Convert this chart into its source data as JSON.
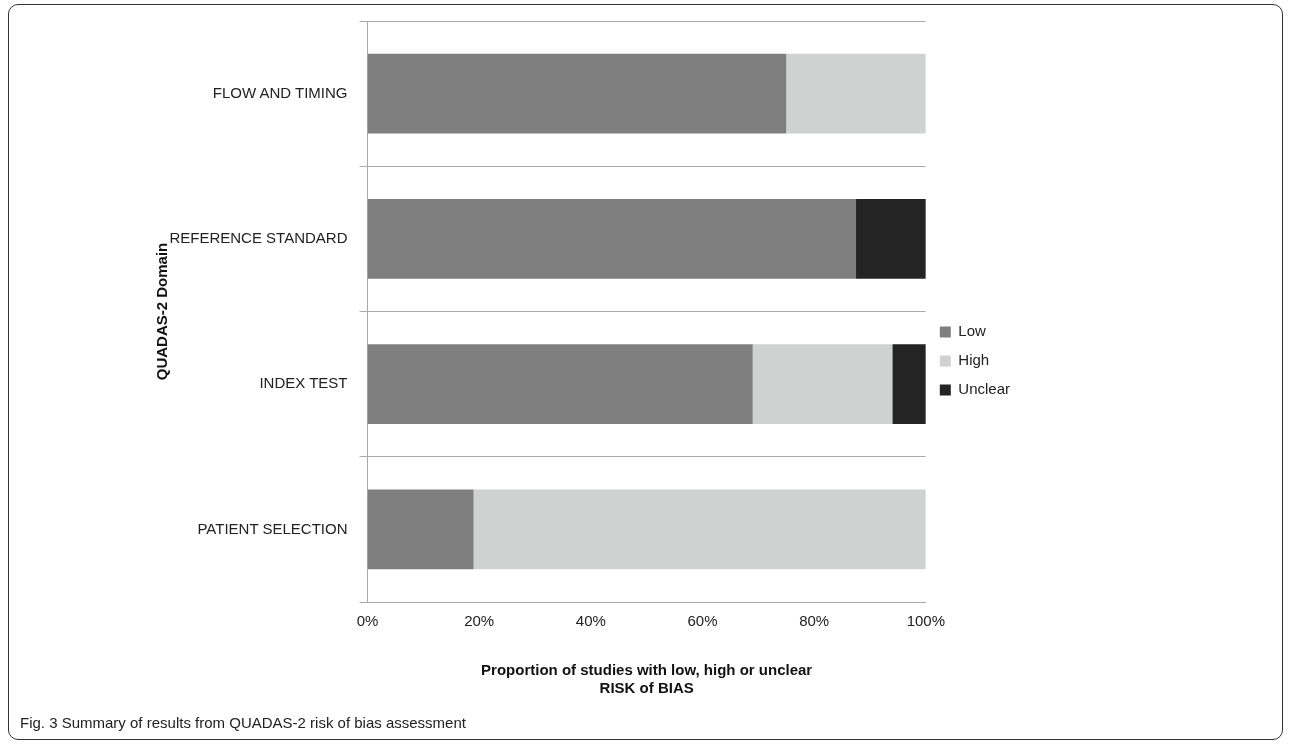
{
  "chart_data": {
    "type": "bar",
    "orientation": "horizontal",
    "stacked": true,
    "categories": [
      "FLOW AND TIMING",
      "REFERENCE STANDARD",
      "INDEX TEST",
      "PATIENT SELECTION"
    ],
    "series": [
      {
        "name": "Low",
        "color": "#7f7f7f",
        "values": [
          75,
          87.5,
          69,
          19
        ]
      },
      {
        "name": "High",
        "color": "#d0d2d1",
        "values": [
          25,
          null,
          25,
          81
        ]
      },
      {
        "name": "Unclear",
        "color": "#242424",
        "values": [
          null,
          12.5,
          6,
          null
        ]
      }
    ],
    "xlim": [
      0,
      100
    ],
    "xticks": [
      {
        "value": 0,
        "label": "0%"
      },
      {
        "value": 20,
        "label": "20%"
      },
      {
        "value": 40,
        "label": "40%"
      },
      {
        "value": 60,
        "label": "60%"
      },
      {
        "value": 80,
        "label": "80%"
      },
      {
        "value": 100,
        "label": "100%"
      }
    ],
    "xlabel": "Proportion of studies with low, high or unclear\nRISK of BIAS",
    "ylabel": "QUADAS-2 Domain",
    "grid": "y",
    "legend": "right",
    "annotations": [
      "Fig. 3 Summary of results from QUADAS-2 risk of bias assessment"
    ]
  }
}
